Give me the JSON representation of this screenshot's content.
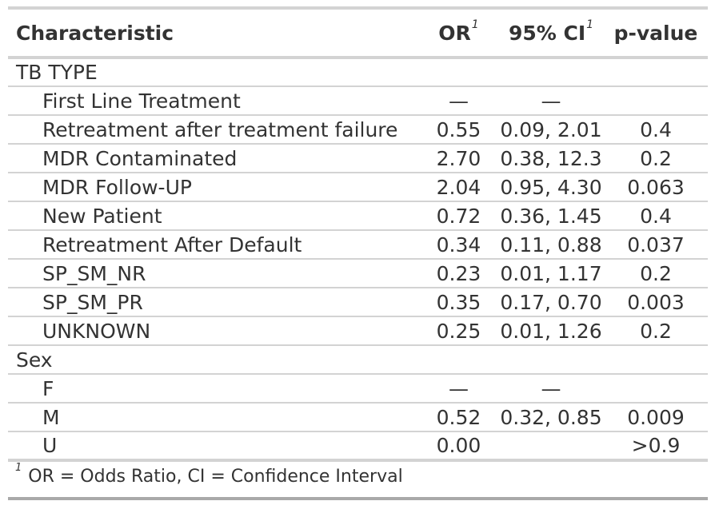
{
  "header": {
    "characteristic": "Characteristic",
    "or": "OR",
    "ci": "95% CI",
    "p": "p-value",
    "footnote_mark": "1"
  },
  "groups": [
    {
      "label": "TB TYPE",
      "rows": [
        {
          "label": "First Line Treatment",
          "or": "—",
          "ci": "—",
          "p": ""
        },
        {
          "label": "Retreatment after treatment failure",
          "or": "0.55",
          "ci": "0.09, 2.01",
          "p": "0.4"
        },
        {
          "label": "MDR Contaminated",
          "or": "2.70",
          "ci": "0.38, 12.3",
          "p": "0.2"
        },
        {
          "label": "MDR Follow-UP",
          "or": "2.04",
          "ci": "0.95, 4.30",
          "p": "0.063"
        },
        {
          "label": "New Patient",
          "or": "0.72",
          "ci": "0.36, 1.45",
          "p": "0.4"
        },
        {
          "label": "Retreatment After Default",
          "or": "0.34",
          "ci": "0.11, 0.88",
          "p": "0.037"
        },
        {
          "label": "SP_SM_NR",
          "or": "0.23",
          "ci": "0.01, 1.17",
          "p": "0.2"
        },
        {
          "label": "SP_SM_PR",
          "or": "0.35",
          "ci": "0.17, 0.70",
          "p": "0.003"
        },
        {
          "label": "UNKNOWN",
          "or": "0.25",
          "ci": "0.01, 1.26",
          "p": "0.2"
        }
      ]
    },
    {
      "label": "Sex",
      "rows": [
        {
          "label": "F",
          "or": "—",
          "ci": "—",
          "p": ""
        },
        {
          "label": "M",
          "or": "0.52",
          "ci": "0.32, 0.85",
          "p": "0.009"
        },
        {
          "label": "U",
          "or": "0.00",
          "ci": "",
          "p": ">0.9"
        }
      ]
    }
  ],
  "footnote": {
    "mark": "1",
    "text": "OR = Odds Ratio, CI = Confidence Interval"
  }
}
